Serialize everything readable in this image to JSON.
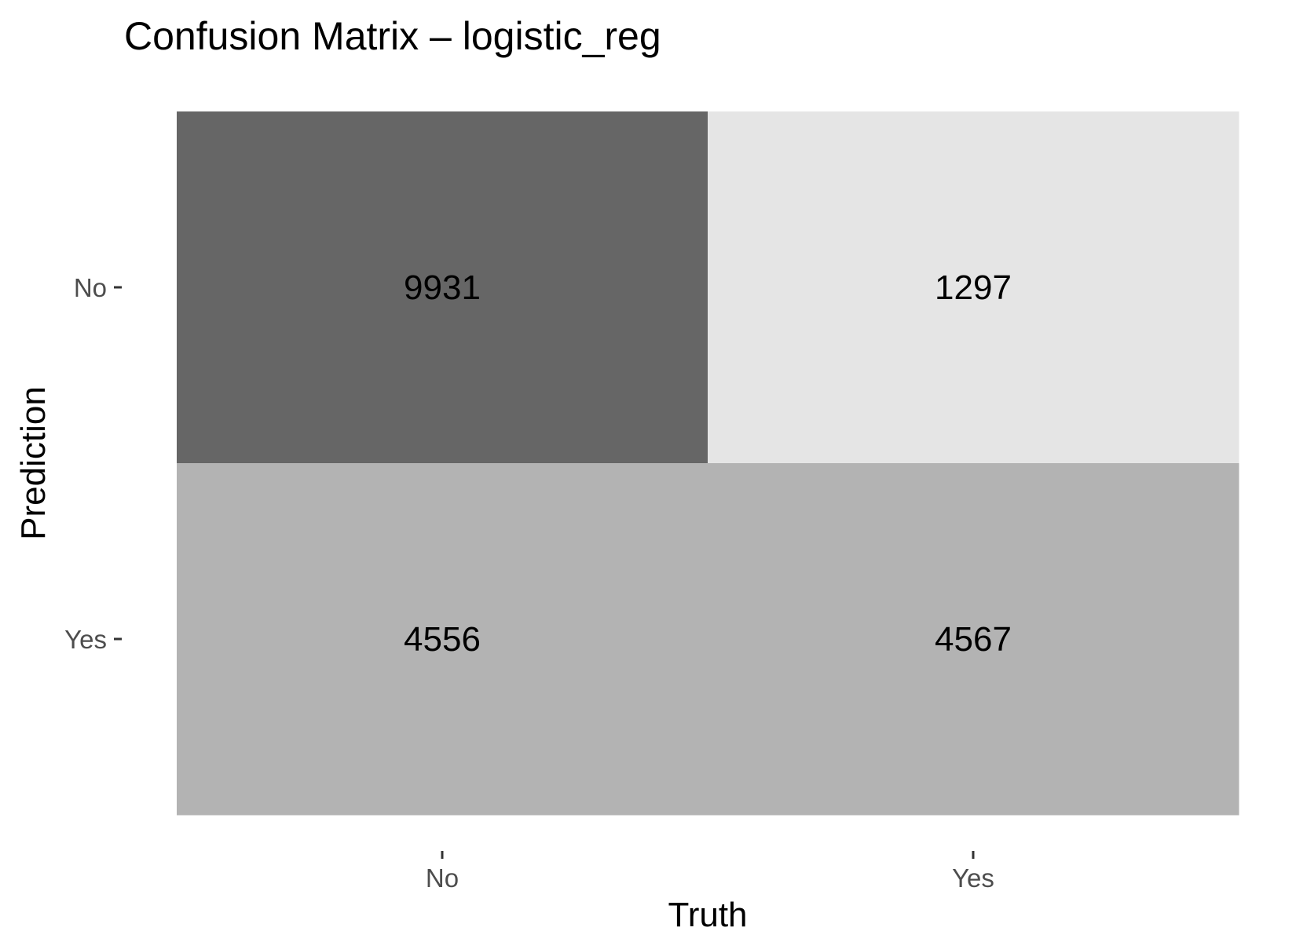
{
  "chart_data": {
    "type": "heatmap",
    "title": "Confusion Matrix – logistic_reg",
    "xlabel": "Truth",
    "ylabel": "Prediction",
    "x_categories": [
      "No",
      "Yes"
    ],
    "y_categories": [
      "No",
      "Yes"
    ],
    "cells": [
      {
        "prediction": "No",
        "truth": "No",
        "value": 9931,
        "color": "#666666"
      },
      {
        "prediction": "No",
        "truth": "Yes",
        "value": 1297,
        "color": "#e5e5e5"
      },
      {
        "prediction": "Yes",
        "truth": "No",
        "value": 4556,
        "color": "#b3b3b3"
      },
      {
        "prediction": "Yes",
        "truth": "Yes",
        "value": 4567,
        "color": "#b3b3b3"
      }
    ],
    "grid": false,
    "legend": "none"
  }
}
